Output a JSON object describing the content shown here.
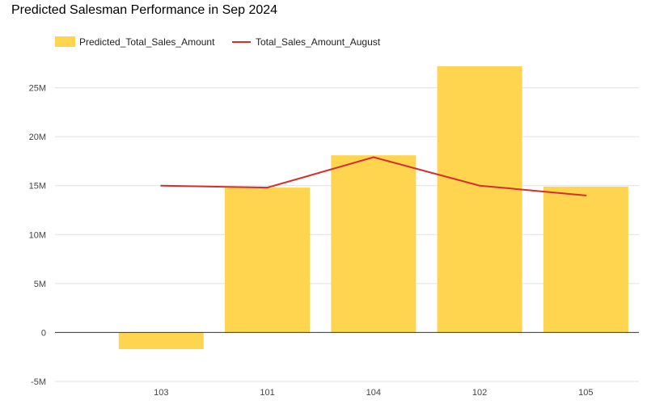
{
  "chart_data": {
    "type": "bar",
    "title": "Predicted Salesman Performance in Sep 2024",
    "xlabel": "",
    "ylabel": "",
    "categories": [
      "103",
      "101",
      "104",
      "102",
      "105"
    ],
    "series": [
      {
        "name": "Predicted_Total_Sales_Amount",
        "type": "bar",
        "color": "#FFD54F",
        "values": [
          -1.7,
          14.8,
          18.1,
          27.2,
          14.9
        ]
      },
      {
        "name": "Total_Sales_Amount_August",
        "type": "line",
        "color": "#D32F2F",
        "values": [
          15.0,
          14.8,
          17.9,
          15.0,
          14.0
        ]
      }
    ],
    "value_unit": "M",
    "ylim": [
      -5,
      30
    ],
    "yticks": [
      -5,
      0,
      5,
      10,
      15,
      20,
      25
    ],
    "ytick_labels": [
      "-5M",
      "0",
      "5M",
      "10M",
      "15M",
      "20M",
      "25M"
    ],
    "grid": true,
    "legend_position": "top-left"
  }
}
